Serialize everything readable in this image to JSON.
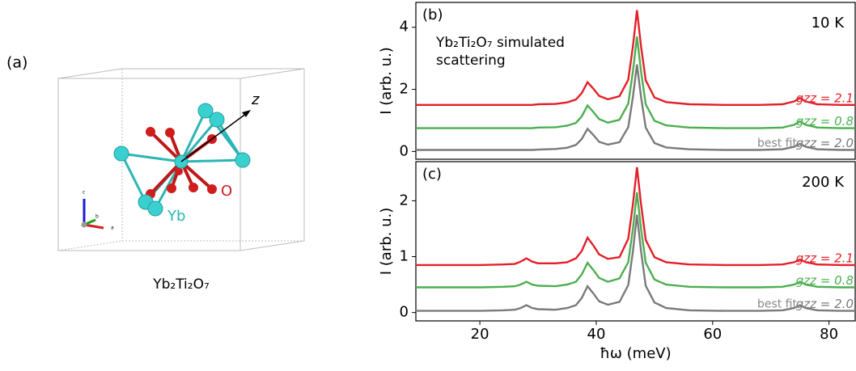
{
  "panel_a": {
    "label": "(a)",
    "atoms": [
      "Yb",
      "O"
    ],
    "axis": "z",
    "caption": "Yb₂Ti₂O₇",
    "frame_axes": [
      "c",
      "b",
      "a"
    ]
  },
  "chart_data": [
    {
      "type": "line",
      "panel_label": "(b)",
      "temperature": "10 K",
      "annotation": [
        "Yb₂Ti₂O₇ simulated",
        "scattering"
      ],
      "y_label": "I (arb. u.)",
      "fit_label": "best fit",
      "x": [
        9,
        14,
        20,
        24,
        26,
        27,
        28,
        29,
        30,
        33,
        35,
        36.5,
        37.5,
        38.5,
        39.5,
        40.5,
        42,
        44,
        45.5,
        46.3,
        47,
        47.7,
        48.5,
        50,
        52,
        56,
        62,
        68,
        72,
        74,
        75,
        76,
        78,
        82,
        84.5
      ],
      "xlim": [
        9,
        84.5
      ],
      "ylim": [
        -0.25,
        4.8
      ],
      "yticks": [
        0,
        2,
        4
      ],
      "series": [
        {
          "name": "gzz = 2.1",
          "color": "#e3202a",
          "values": [
            1.5,
            1.5,
            1.5,
            1.5,
            1.5,
            1.5,
            1.5,
            1.5,
            1.52,
            1.53,
            1.58,
            1.67,
            1.88,
            2.23,
            2.02,
            1.79,
            1.68,
            1.78,
            2.31,
            3.39,
            4.55,
            3.39,
            2.29,
            1.74,
            1.59,
            1.52,
            1.5,
            1.5,
            1.52,
            1.61,
            1.72,
            1.61,
            1.52,
            1.5,
            1.5
          ]
        },
        {
          "name": "gzz = 0.8",
          "color": "#4caf50",
          "values": [
            0.75,
            0.75,
            0.75,
            0.75,
            0.75,
            0.75,
            0.75,
            0.75,
            0.77,
            0.78,
            0.83,
            0.92,
            1.13,
            1.48,
            1.27,
            1.04,
            0.93,
            1.02,
            1.54,
            2.58,
            3.7,
            2.58,
            1.52,
            0.99,
            0.84,
            0.77,
            0.75,
            0.75,
            0.77,
            0.86,
            0.97,
            0.86,
            0.77,
            0.75,
            0.75
          ]
        },
        {
          "name": "gzz = 2.0",
          "color": "#7a7a7a",
          "values": [
            0.05,
            0.05,
            0.05,
            0.05,
            0.05,
            0.05,
            0.05,
            0.05,
            0.06,
            0.08,
            0.12,
            0.21,
            0.4,
            0.73,
            0.53,
            0.31,
            0.22,
            0.3,
            0.78,
            1.76,
            2.8,
            1.76,
            0.77,
            0.27,
            0.13,
            0.07,
            0.05,
            0.05,
            0.07,
            0.15,
            0.25,
            0.15,
            0.07,
            0.05,
            0.05
          ]
        }
      ]
    },
    {
      "type": "line",
      "panel_label": "(c)",
      "temperature": "200 K",
      "y_label": "I (arb. u.)",
      "x_label": "ħω (meV)",
      "fit_label": "best fit",
      "x": [
        9,
        14,
        20,
        24,
        26,
        27,
        28,
        29,
        30,
        33,
        35,
        36.5,
        37.5,
        38.5,
        39.5,
        40.5,
        42,
        44,
        45.5,
        46.3,
        47,
        47.7,
        48.5,
        50,
        52,
        56,
        62,
        68,
        72,
        74,
        75,
        76,
        78,
        82,
        84.5
      ],
      "xlim": [
        9,
        84.5
      ],
      "xticks": [
        20,
        40,
        60,
        80
      ],
      "ylim": [
        -0.15,
        2.7
      ],
      "yticks": [
        0,
        1,
        2
      ],
      "series": [
        {
          "name": "gzz = 2.1",
          "color": "#e3202a",
          "values": [
            0.85,
            0.85,
            0.85,
            0.86,
            0.87,
            0.91,
            0.97,
            0.91,
            0.88,
            0.88,
            0.9,
            0.97,
            1.1,
            1.34,
            1.2,
            1.04,
            0.96,
            0.99,
            1.32,
            1.94,
            2.6,
            1.94,
            1.3,
            0.99,
            0.9,
            0.86,
            0.85,
            0.85,
            0.86,
            0.9,
            0.95,
            0.9,
            0.86,
            0.85,
            0.85
          ]
        },
        {
          "name": "gzz = 0.8",
          "color": "#4caf50",
          "values": [
            0.45,
            0.45,
            0.45,
            0.46,
            0.47,
            0.5,
            0.55,
            0.5,
            0.48,
            0.47,
            0.5,
            0.55,
            0.68,
            0.89,
            0.76,
            0.62,
            0.55,
            0.61,
            0.9,
            1.5,
            2.15,
            1.5,
            0.89,
            0.59,
            0.5,
            0.46,
            0.45,
            0.45,
            0.46,
            0.5,
            0.55,
            0.5,
            0.46,
            0.45,
            0.45
          ]
        },
        {
          "name": "gzz = 2.0",
          "color": "#7a7a7a",
          "values": [
            0.03,
            0.03,
            0.03,
            0.04,
            0.05,
            0.08,
            0.13,
            0.08,
            0.06,
            0.05,
            0.08,
            0.13,
            0.26,
            0.47,
            0.34,
            0.2,
            0.14,
            0.19,
            0.49,
            1.1,
            1.75,
            1.1,
            0.48,
            0.18,
            0.08,
            0.04,
            0.03,
            0.03,
            0.04,
            0.08,
            0.13,
            0.08,
            0.04,
            0.03,
            0.03
          ]
        }
      ]
    }
  ]
}
